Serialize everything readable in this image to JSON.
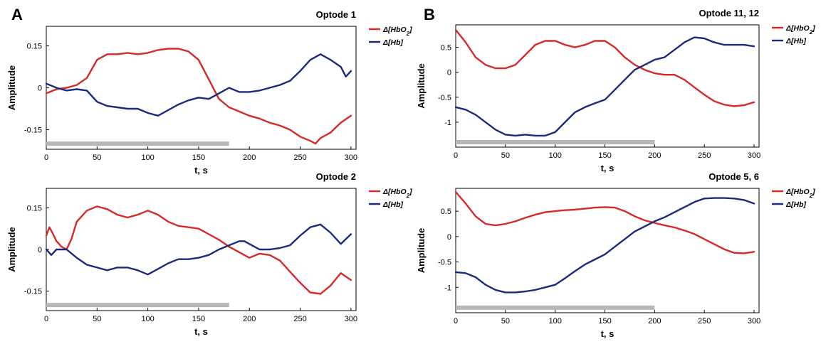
{
  "panels": [
    {
      "letter": "A"
    },
    {
      "letter": "B"
    }
  ],
  "colors": {
    "hbo2": "#d62a2a",
    "hb": "#1b2a7a",
    "bar": "#b7b7b7",
    "axis": "#000000"
  },
  "chart_data": [
    {
      "type": "line",
      "panel": "A",
      "title": "Optode 1",
      "xlabel": "t, s",
      "ylabel": "Amplitude",
      "xlim": [
        0,
        305
      ],
      "ylim": [
        -0.22,
        0.22
      ],
      "xticks": [
        0,
        50,
        100,
        150,
        200,
        250,
        300
      ],
      "yticks": [
        -0.15,
        0,
        0.15
      ],
      "ytick_labels": [
        "-0.15",
        "0",
        "0.15"
      ],
      "legend_position": "right",
      "bar": {
        "x_start": 0,
        "x_end": 180,
        "y": -0.2
      },
      "series": [
        {
          "name": "Δ[HbO2]",
          "color_key": "hbo2",
          "x": [
            0,
            10,
            20,
            30,
            40,
            50,
            60,
            70,
            80,
            90,
            100,
            110,
            120,
            130,
            140,
            150,
            160,
            170,
            180,
            190,
            200,
            210,
            220,
            230,
            240,
            250,
            260,
            265,
            270,
            280,
            290,
            300
          ],
          "y": [
            -0.02,
            -0.005,
            0.0,
            0.01,
            0.035,
            0.1,
            0.12,
            0.12,
            0.125,
            0.12,
            0.125,
            0.135,
            0.14,
            0.14,
            0.13,
            0.1,
            0.03,
            -0.04,
            -0.07,
            -0.085,
            -0.1,
            -0.11,
            -0.125,
            -0.135,
            -0.15,
            -0.175,
            -0.19,
            -0.2,
            -0.18,
            -0.16,
            -0.125,
            -0.1
          ]
        },
        {
          "name": "Δ[Hb]",
          "color_key": "hb",
          "x": [
            0,
            10,
            20,
            30,
            40,
            50,
            60,
            70,
            80,
            90,
            100,
            110,
            120,
            130,
            140,
            150,
            160,
            170,
            180,
            190,
            200,
            210,
            220,
            230,
            240,
            250,
            260,
            270,
            280,
            290,
            295,
            300
          ],
          "y": [
            0.015,
            0.0,
            -0.01,
            -0.005,
            -0.01,
            -0.05,
            -0.065,
            -0.07,
            -0.075,
            -0.075,
            -0.09,
            -0.1,
            -0.08,
            -0.06,
            -0.045,
            -0.035,
            -0.04,
            -0.02,
            0.0,
            -0.015,
            -0.015,
            -0.01,
            0.0,
            0.01,
            0.025,
            0.06,
            0.1,
            0.12,
            0.1,
            0.075,
            0.04,
            0.06
          ]
        }
      ]
    },
    {
      "type": "line",
      "panel": "A",
      "title": "Optode 2",
      "xlabel": "t, s",
      "ylabel": "Amplitude",
      "xlim": [
        0,
        305
      ],
      "ylim": [
        -0.22,
        0.22
      ],
      "xticks": [
        0,
        50,
        100,
        150,
        200,
        250,
        300
      ],
      "yticks": [
        -0.15,
        0,
        0.15
      ],
      "ytick_labels": [
        "-0.15",
        "0",
        "0.15"
      ],
      "legend_position": "right",
      "bar": {
        "x_start": 0,
        "x_end": 180,
        "y": -0.2
      },
      "series": [
        {
          "name": "Δ[HbO2]",
          "color_key": "hbo2",
          "x": [
            0,
            3,
            6,
            10,
            15,
            20,
            25,
            30,
            40,
            50,
            60,
            70,
            80,
            90,
            100,
            110,
            120,
            130,
            140,
            150,
            160,
            170,
            180,
            190,
            200,
            210,
            220,
            230,
            240,
            250,
            260,
            270,
            280,
            290,
            300
          ],
          "y": [
            0.05,
            0.08,
            0.06,
            0.03,
            0.01,
            0.0,
            0.04,
            0.1,
            0.14,
            0.155,
            0.145,
            0.125,
            0.115,
            0.125,
            0.14,
            0.125,
            0.1,
            0.085,
            0.08,
            0.075,
            0.055,
            0.035,
            0.01,
            -0.01,
            -0.03,
            -0.015,
            -0.02,
            -0.04,
            -0.08,
            -0.12,
            -0.155,
            -0.16,
            -0.13,
            -0.085,
            -0.11
          ]
        },
        {
          "name": "Δ[Hb]",
          "color_key": "hb",
          "x": [
            0,
            5,
            10,
            20,
            30,
            40,
            50,
            60,
            70,
            80,
            90,
            100,
            110,
            120,
            130,
            140,
            150,
            160,
            170,
            180,
            190,
            195,
            200,
            210,
            220,
            230,
            240,
            250,
            260,
            270,
            280,
            290,
            300
          ],
          "y": [
            0.0,
            -0.02,
            0.0,
            0.0,
            -0.03,
            -0.055,
            -0.065,
            -0.075,
            -0.065,
            -0.065,
            -0.075,
            -0.09,
            -0.07,
            -0.05,
            -0.035,
            -0.035,
            -0.03,
            -0.02,
            0.0,
            0.015,
            0.03,
            0.03,
            0.02,
            0.0,
            0.0,
            0.005,
            0.015,
            0.05,
            0.08,
            0.09,
            0.06,
            0.02,
            0.055
          ]
        }
      ]
    },
    {
      "type": "line",
      "panel": "B",
      "title": "Optode 11, 12",
      "xlabel": "t, s",
      "ylabel": "Amplitude",
      "xlim": [
        0,
        305
      ],
      "ylim": [
        -1.5,
        0.95
      ],
      "xticks": [
        0,
        50,
        100,
        150,
        200,
        250,
        300
      ],
      "yticks": [
        -1,
        -0.5,
        0,
        0.5
      ],
      "ytick_labels": [
        "-1",
        "-0.5",
        "0",
        "0.5"
      ],
      "legend_position": "right",
      "bar": {
        "x_start": 0,
        "x_end": 200,
        "y": -1.4
      },
      "series": [
        {
          "name": "Δ[HbO2]",
          "color_key": "hbo2",
          "x": [
            0,
            10,
            20,
            30,
            40,
            50,
            60,
            70,
            80,
            90,
            100,
            110,
            120,
            130,
            140,
            150,
            160,
            170,
            180,
            190,
            200,
            210,
            220,
            230,
            240,
            250,
            260,
            270,
            280,
            290,
            300
          ],
          "y": [
            0.85,
            0.6,
            0.3,
            0.15,
            0.08,
            0.08,
            0.15,
            0.35,
            0.55,
            0.63,
            0.63,
            0.55,
            0.5,
            0.55,
            0.63,
            0.63,
            0.5,
            0.3,
            0.15,
            0.05,
            -0.02,
            -0.05,
            -0.05,
            -0.15,
            -0.3,
            -0.45,
            -0.58,
            -0.65,
            -0.68,
            -0.66,
            -0.6
          ]
        },
        {
          "name": "Δ[Hb]",
          "color_key": "hb",
          "x": [
            0,
            10,
            20,
            30,
            40,
            50,
            60,
            70,
            80,
            90,
            100,
            110,
            120,
            130,
            140,
            150,
            160,
            170,
            180,
            190,
            200,
            210,
            220,
            230,
            240,
            250,
            260,
            270,
            280,
            290,
            300
          ],
          "y": [
            -0.7,
            -0.75,
            -0.85,
            -1.0,
            -1.15,
            -1.25,
            -1.27,
            -1.25,
            -1.27,
            -1.27,
            -1.2,
            -1.0,
            -0.8,
            -0.7,
            -0.62,
            -0.55,
            -0.35,
            -0.15,
            0.05,
            0.15,
            0.25,
            0.3,
            0.45,
            0.6,
            0.7,
            0.68,
            0.6,
            0.55,
            0.55,
            0.55,
            0.52
          ]
        }
      ]
    },
    {
      "type": "line",
      "panel": "B",
      "title": "Optode 5, 6",
      "xlabel": "t, s",
      "ylabel": "Amplitude",
      "xlim": [
        0,
        305
      ],
      "ylim": [
        -1.5,
        0.95
      ],
      "xticks": [
        0,
        50,
        100,
        150,
        200,
        250,
        300
      ],
      "yticks": [
        -1,
        -0.5,
        0,
        0.5
      ],
      "ytick_labels": [
        "-1",
        "-0.5",
        "0",
        "0.5"
      ],
      "legend_position": "right",
      "bar": {
        "x_start": 0,
        "x_end": 200,
        "y": -1.4
      },
      "series": [
        {
          "name": "Δ[HbO2]",
          "color_key": "hbo2",
          "x": [
            0,
            10,
            20,
            30,
            40,
            50,
            60,
            70,
            80,
            90,
            100,
            110,
            120,
            130,
            140,
            150,
            160,
            170,
            180,
            190,
            200,
            210,
            220,
            230,
            240,
            250,
            260,
            270,
            280,
            290,
            300
          ],
          "y": [
            0.88,
            0.65,
            0.4,
            0.25,
            0.22,
            0.25,
            0.3,
            0.37,
            0.43,
            0.48,
            0.5,
            0.52,
            0.53,
            0.55,
            0.57,
            0.58,
            0.57,
            0.5,
            0.4,
            0.32,
            0.27,
            0.22,
            0.18,
            0.12,
            0.05,
            -0.05,
            -0.15,
            -0.25,
            -0.32,
            -0.33,
            -0.3
          ]
        },
        {
          "name": "Δ[Hb]",
          "color_key": "hb",
          "x": [
            0,
            10,
            20,
            30,
            40,
            50,
            60,
            70,
            80,
            90,
            100,
            110,
            120,
            130,
            140,
            150,
            160,
            170,
            180,
            190,
            200,
            210,
            220,
            230,
            240,
            250,
            260,
            270,
            280,
            290,
            300
          ],
          "y": [
            -0.7,
            -0.72,
            -0.8,
            -0.95,
            -1.05,
            -1.1,
            -1.1,
            -1.08,
            -1.05,
            -1.0,
            -0.95,
            -0.82,
            -0.68,
            -0.55,
            -0.45,
            -0.35,
            -0.2,
            -0.05,
            0.1,
            0.2,
            0.3,
            0.38,
            0.48,
            0.58,
            0.68,
            0.75,
            0.76,
            0.76,
            0.75,
            0.72,
            0.65
          ]
        }
      ]
    }
  ]
}
